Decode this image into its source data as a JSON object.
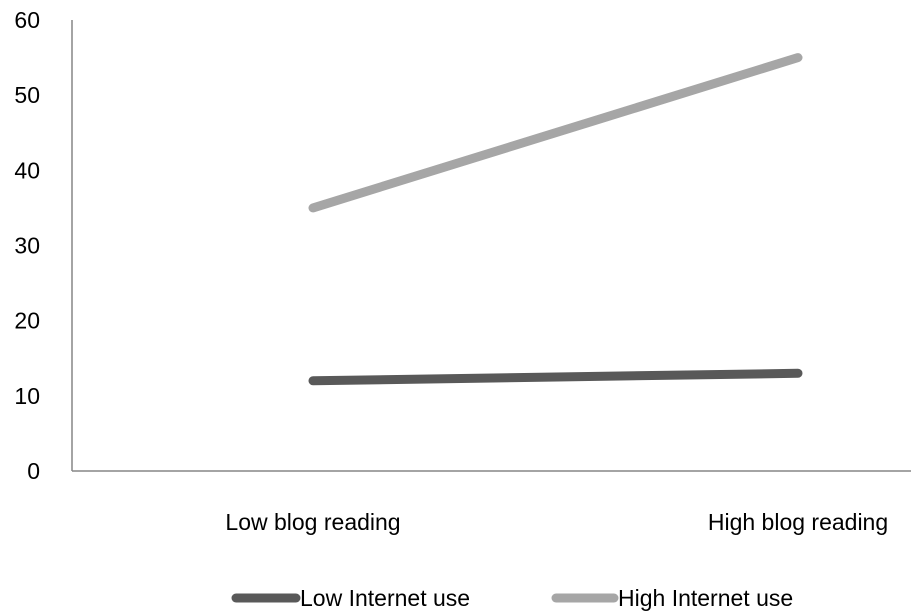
{
  "chart_data": {
    "type": "line",
    "title": "",
    "xlabel": "",
    "ylabel": "",
    "categories": [
      "Low blog reading",
      "High blog reading"
    ],
    "ylim": [
      0,
      60
    ],
    "yticks": [
      0,
      10,
      20,
      30,
      40,
      50,
      60
    ],
    "grid": false,
    "legend_position": "bottom",
    "series": [
      {
        "name": "Low Internet use",
        "values": [
          12,
          13
        ],
        "color": "#595959"
      },
      {
        "name": "High Internet use",
        "values": [
          35,
          55
        ],
        "color": "#a6a6a6"
      }
    ]
  }
}
